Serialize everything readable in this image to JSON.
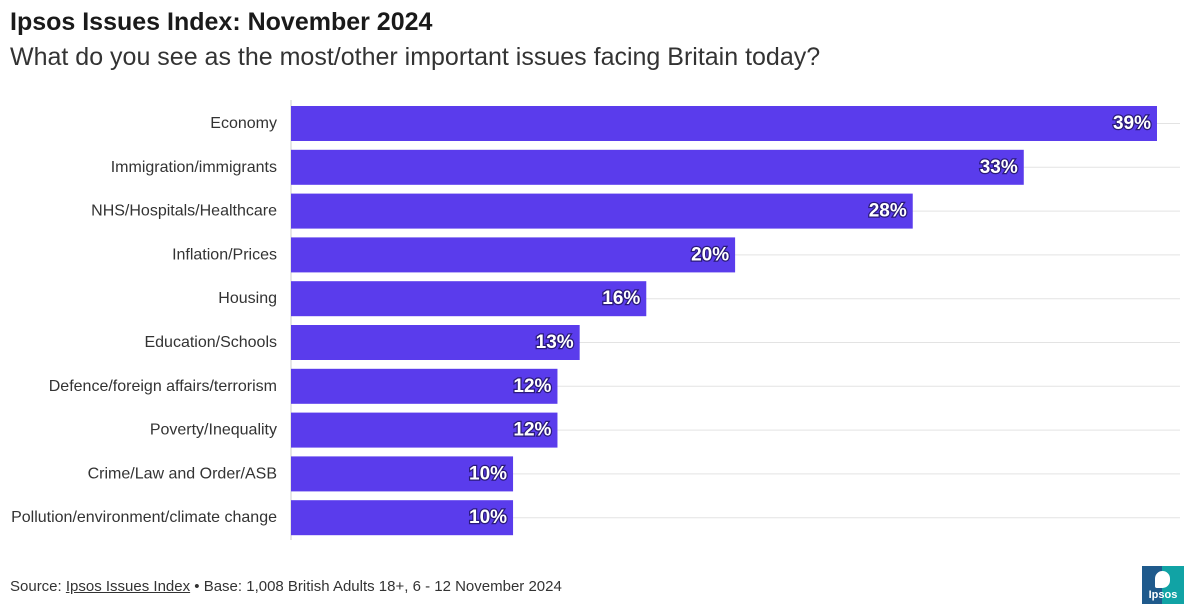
{
  "title": "Ipsos Issues Index: November 2024",
  "subtitle": "What do you see as the most/other important issues facing Britain today?",
  "footer": {
    "prefix": "Source: ",
    "link": "Ipsos Issues Index",
    "rest": " • Base: 1,008 British Adults 18+, 6 - 12 November 2024"
  },
  "logo": {
    "text": "Ipsos"
  },
  "colors": {
    "bar": "#5a3cec",
    "grid": "#e3e3e3",
    "axis": "#cccccc"
  },
  "chart_data": {
    "type": "bar",
    "orientation": "horizontal",
    "title": "Ipsos Issues Index: November 2024",
    "subtitle": "What do you see as the most/other important issues facing Britain today?",
    "categories": [
      "Economy",
      "Immigration/immigrants",
      "NHS/Hospitals/Healthcare",
      "Inflation/Prices",
      "Housing",
      "Education/Schools",
      "Defence/foreign affairs/terrorism",
      "Poverty/Inequality",
      "Crime/Law and Order/ASB",
      "Pollution/environment/climate change"
    ],
    "values": [
      39,
      33,
      28,
      20,
      16,
      13,
      12,
      12,
      10,
      10
    ],
    "value_labels": [
      "39%",
      "33%",
      "28%",
      "20%",
      "16%",
      "13%",
      "12%",
      "12%",
      "10%",
      "10%"
    ],
    "unit": "%",
    "xlim": [
      0,
      39
    ],
    "grid": true,
    "legend": false
  }
}
